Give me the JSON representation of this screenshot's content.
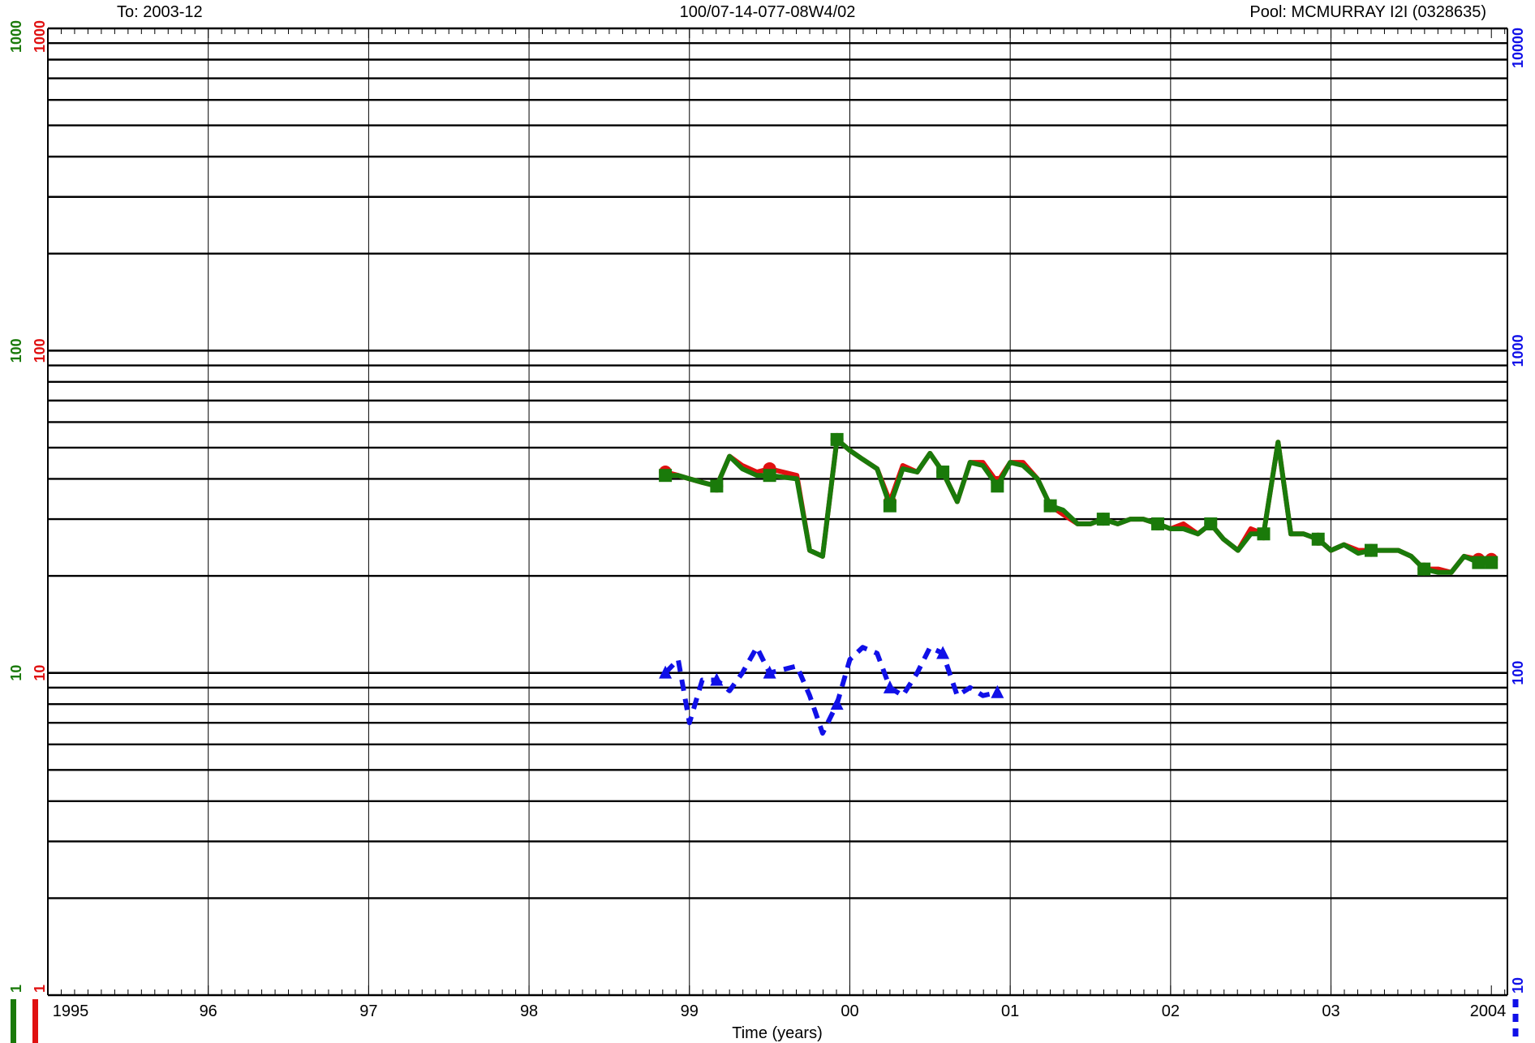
{
  "header": {
    "to_label": "To:  2003-12",
    "well_id": "100/07-14-077-08W4/02",
    "pool_label": "Pool:  MCMURRAY I2I (0328635)"
  },
  "colors": {
    "green": "#1a7a0a",
    "red": "#e01010",
    "blue": "#1010e8",
    "grid": "#000000"
  },
  "chart_data": {
    "type": "line",
    "title": "",
    "xlabel": "Time (years)",
    "x_tick_labels": [
      "1995",
      "96",
      "97",
      "98",
      "99",
      "00",
      "01",
      "02",
      "03",
      "2004"
    ],
    "xlim": [
      1995.0,
      2004.1
    ],
    "y_left": {
      "scale": "log",
      "ylim": [
        1,
        1000
      ],
      "green_tick_labels": [
        "1000",
        "100",
        "10",
        "1"
      ],
      "red_tick_labels": [
        "1000",
        "100",
        "10",
        "1"
      ]
    },
    "y_right": {
      "scale": "log",
      "ylim": [
        10,
        10000
      ],
      "tick_labels": [
        "10000",
        "1000",
        "100",
        "10"
      ]
    },
    "grid": true,
    "series": [
      {
        "axis": "left",
        "color": "red",
        "style": "solid",
        "marker": "circle",
        "x": [
          1998.85,
          1998.93,
          1999.0,
          1999.08,
          1999.17,
          1999.25,
          1999.33,
          1999.42,
          1999.5,
          1999.67,
          1999.75,
          1999.83,
          1999.92,
          2000.0,
          2000.08,
          2000.17,
          2000.25,
          2000.33,
          2000.42,
          2000.5,
          2000.58,
          2000.67,
          2000.75,
          2000.83,
          2000.92,
          2001.0,
          2001.08,
          2001.17,
          2001.25,
          2001.33,
          2001.42,
          2001.5,
          2001.58,
          2001.67,
          2001.75,
          2001.83,
          2001.92,
          2002.0,
          2002.08,
          2002.17,
          2002.25,
          2002.33,
          2002.42,
          2002.5,
          2002.58,
          2002.67,
          2002.75,
          2002.83,
          2002.92,
          2003.0,
          2003.08,
          2003.17,
          2003.25,
          2003.33,
          2003.42,
          2003.5,
          2003.58,
          2003.67,
          2003.75,
          2003.83,
          2003.92,
          2004.0
        ],
        "y": [
          42,
          41,
          40,
          39,
          38,
          47,
          44,
          42,
          43,
          41,
          24,
          23,
          53,
          49,
          46,
          43,
          34,
          44,
          42,
          48,
          42,
          34,
          45,
          45,
          39,
          45,
          45,
          40,
          33,
          31,
          29,
          29,
          30,
          29,
          30,
          30,
          29,
          28,
          29,
          27,
          29,
          26,
          24,
          28,
          27,
          52,
          27,
          27,
          26,
          24,
          25,
          24,
          24,
          24,
          24,
          23,
          21,
          21,
          20.5,
          23,
          22.5,
          22.5
        ]
      },
      {
        "axis": "left",
        "color": "green",
        "style": "solid",
        "marker": "square",
        "x": [
          1998.85,
          1998.93,
          1999.0,
          1999.08,
          1999.17,
          1999.25,
          1999.33,
          1999.42,
          1999.5,
          1999.67,
          1999.75,
          1999.83,
          1999.92,
          2000.0,
          2000.08,
          2000.17,
          2000.25,
          2000.33,
          2000.42,
          2000.5,
          2000.58,
          2000.67,
          2000.75,
          2000.83,
          2000.92,
          2001.0,
          2001.08,
          2001.17,
          2001.25,
          2001.33,
          2001.42,
          2001.5,
          2001.58,
          2001.67,
          2001.75,
          2001.83,
          2001.92,
          2002.0,
          2002.08,
          2002.17,
          2002.25,
          2002.33,
          2002.42,
          2002.5,
          2002.58,
          2002.67,
          2002.75,
          2002.83,
          2002.92,
          2003.0,
          2003.08,
          2003.17,
          2003.25,
          2003.33,
          2003.42,
          2003.5,
          2003.58,
          2003.67,
          2003.75,
          2003.83,
          2003.92,
          2004.0
        ],
        "y": [
          41,
          41,
          40,
          39,
          38,
          47,
          43,
          41,
          41,
          40,
          24,
          23,
          53,
          49,
          46,
          43,
          33,
          43,
          42,
          48,
          42,
          34,
          45,
          44,
          38,
          45,
          44,
          40,
          33,
          32,
          29,
          29,
          30,
          29,
          30,
          30,
          29,
          28,
          28,
          27,
          29,
          26,
          24,
          27,
          27,
          52,
          27,
          27,
          26,
          24,
          25,
          23.5,
          24,
          24,
          24,
          23,
          21,
          20.5,
          20.5,
          23,
          22,
          22
        ]
      },
      {
        "axis": "right",
        "color": "blue",
        "style": "dashed",
        "marker": "triangle",
        "x": [
          1998.85,
          1998.93,
          1999.0,
          1999.08,
          1999.17,
          1999.25,
          1999.33,
          1999.42,
          1999.5,
          1999.67,
          1999.75,
          1999.83,
          1999.92,
          2000.0,
          2000.08,
          2000.17,
          2000.25,
          2000.33,
          2000.42,
          2000.5,
          2000.58,
          2000.67,
          2000.75,
          2000.83,
          2000.92
        ],
        "y": [
          100,
          110,
          70,
          95,
          95,
          88,
          100,
          120,
          100,
          105,
          85,
          65,
          80,
          110,
          120,
          115,
          90,
          85,
          100,
          120,
          115,
          85,
          90,
          85,
          87
        ]
      }
    ]
  },
  "legend_bars": {
    "left_colors": [
      "green",
      "red"
    ],
    "right_color": "blue"
  }
}
